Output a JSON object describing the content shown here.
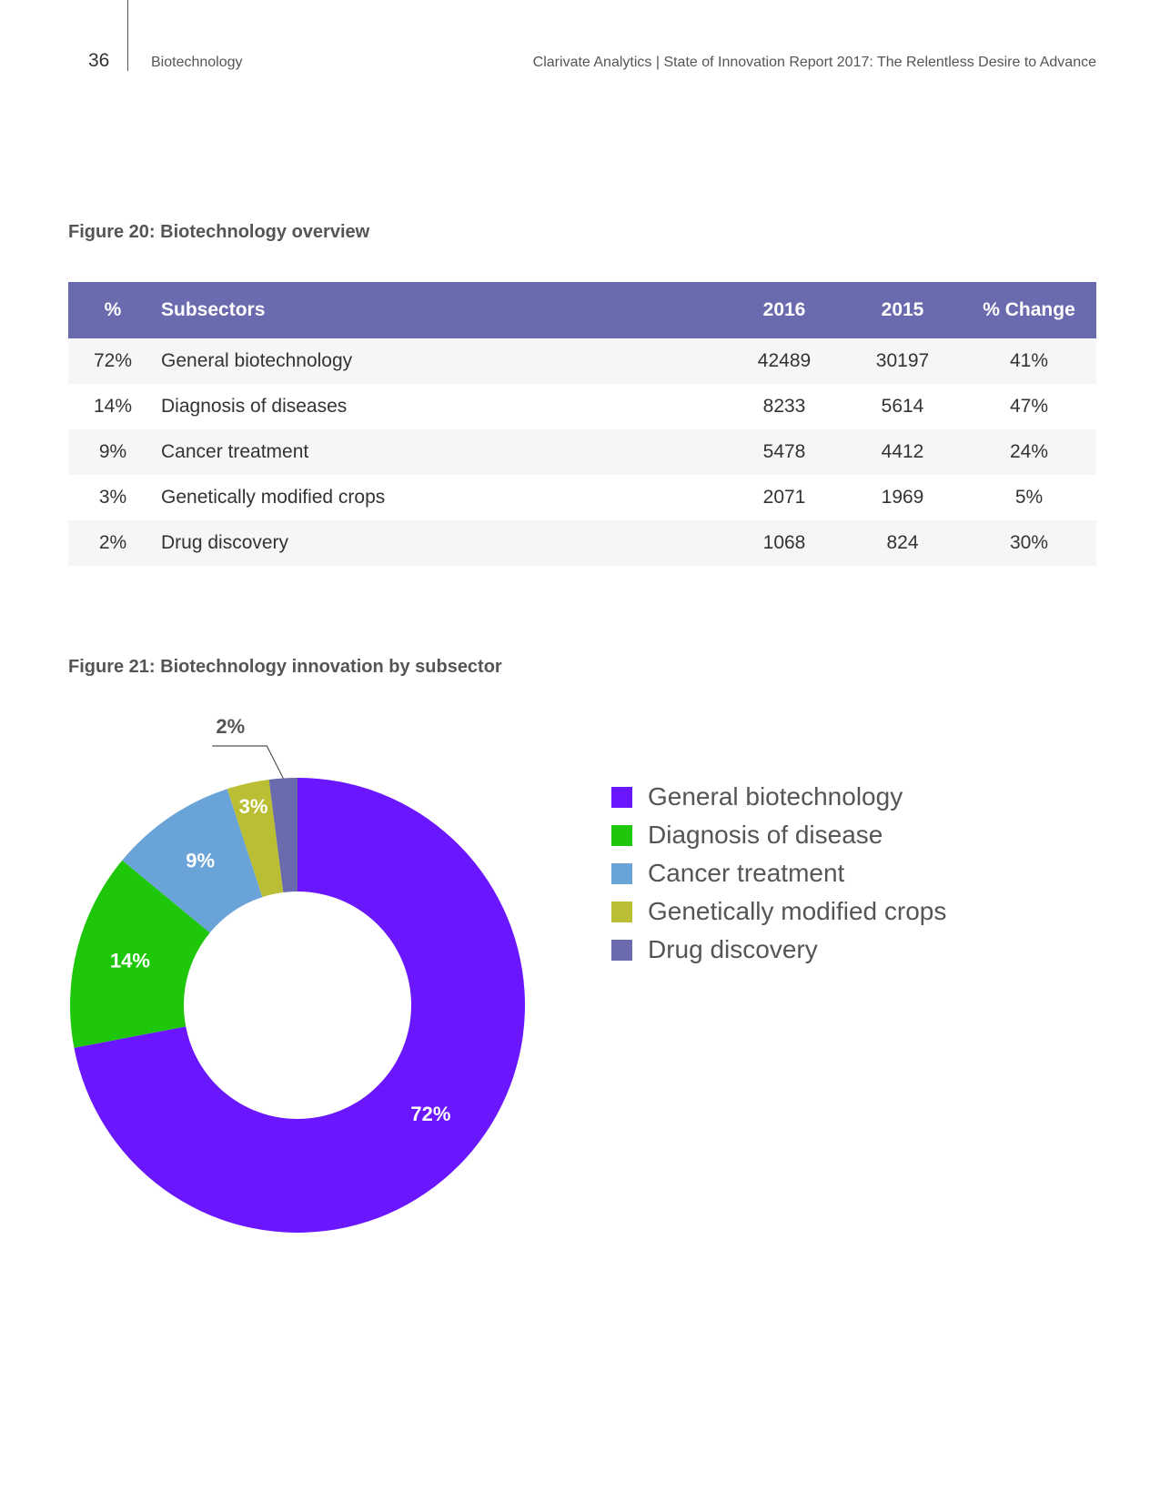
{
  "header": {
    "page_number": "36",
    "section": "Biotechnology",
    "running_title": "Clarivate Analytics | State of Innovation Report 2017: The Relentless Desire to Advance"
  },
  "figure20": {
    "title": "Figure 20: Biotechnology overview",
    "columns": [
      "%",
      "Subsectors",
      "2016",
      "2015",
      "% Change"
    ],
    "rows": [
      {
        "pct": "72%",
        "subsector": "General biotechnology",
        "y2016": "42489",
        "y2015": "30197",
        "change": "41%"
      },
      {
        "pct": "14%",
        "subsector": "Diagnosis of diseases",
        "y2016": "8233",
        "y2015": "5614",
        "change": "47%"
      },
      {
        "pct": "9%",
        "subsector": "Cancer treatment",
        "y2016": "5478",
        "y2015": "4412",
        "change": "24%"
      },
      {
        "pct": "3%",
        "subsector": "Genetically modified crops",
        "y2016": "2071",
        "y2015": "1969",
        "change": "5%"
      },
      {
        "pct": "2%",
        "subsector": "Drug discovery",
        "y2016": "1068",
        "y2015": "824",
        "change": "30%"
      }
    ]
  },
  "figure21": {
    "title": "Figure 21: Biotechnology innovation by subsector"
  },
  "chart_data": {
    "type": "pie",
    "donut": true,
    "title": "Figure 21: Biotechnology innovation by subsector",
    "categories": [
      "General biotechnology",
      "Diagnosis of disease",
      "Cancer treatment",
      "Genetically modified crops",
      "Drug discovery"
    ],
    "values": [
      72,
      14,
      9,
      3,
      2
    ],
    "labels": [
      "72%",
      "14%",
      "9%",
      "3%",
      "2%"
    ],
    "colors": [
      "#6a17ff",
      "#1ec70a",
      "#69a3d8",
      "#b9be32",
      "#6a6aae"
    ],
    "legend": "right"
  }
}
